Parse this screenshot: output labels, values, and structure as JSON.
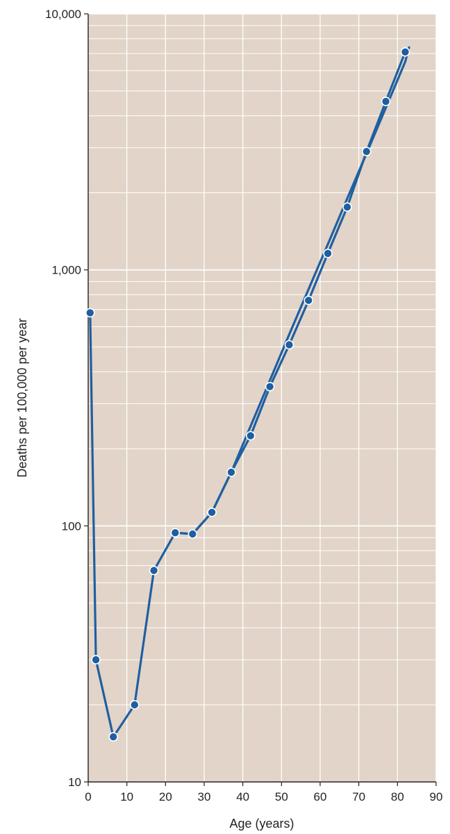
{
  "chart_data": {
    "type": "line",
    "xlabel": "Age (years)",
    "ylabel": "Deaths per 100,000 per year",
    "xlim": [
      0,
      90
    ],
    "ylim": [
      10,
      10000
    ],
    "y_scale": "log",
    "grid": true,
    "x_ticks": [
      0,
      10,
      20,
      30,
      40,
      50,
      60,
      70,
      80,
      90
    ],
    "x_tick_labels": [
      "0",
      "10",
      "20",
      "30",
      "40",
      "50",
      "60",
      "70",
      "80",
      "90"
    ],
    "y_ticks": [
      10,
      100,
      1000,
      10000
    ],
    "y_tick_labels": [
      "10",
      "100",
      "1,000",
      "10,000"
    ],
    "colors": {
      "plot_background": "#e2d4c8",
      "grid": "#ffffff",
      "series": "#1f5fa1",
      "axis": "#231f20"
    },
    "series": [
      {
        "style": "line-through-points",
        "x": [
          0.5,
          2,
          6.5,
          12,
          17,
          22.5,
          27,
          32,
          37,
          42,
          47,
          52,
          57,
          62,
          67,
          72,
          77,
          82
        ],
        "y": [
          680,
          30,
          15,
          20,
          67,
          94,
          93,
          113,
          162,
          225,
          350,
          510,
          760,
          1160,
          1760,
          2900,
          4550,
          7100
        ]
      },
      {
        "style": "trend-line",
        "x": [
          22.5,
          27,
          32,
          37,
          42,
          47,
          52,
          57,
          62,
          67,
          72,
          77,
          82,
          83
        ],
        "y": [
          94,
          93,
          113,
          162,
          245,
          370,
          560,
          840,
          1260,
          1900,
          2850,
          4300,
          6500,
          7400
        ]
      }
    ]
  }
}
